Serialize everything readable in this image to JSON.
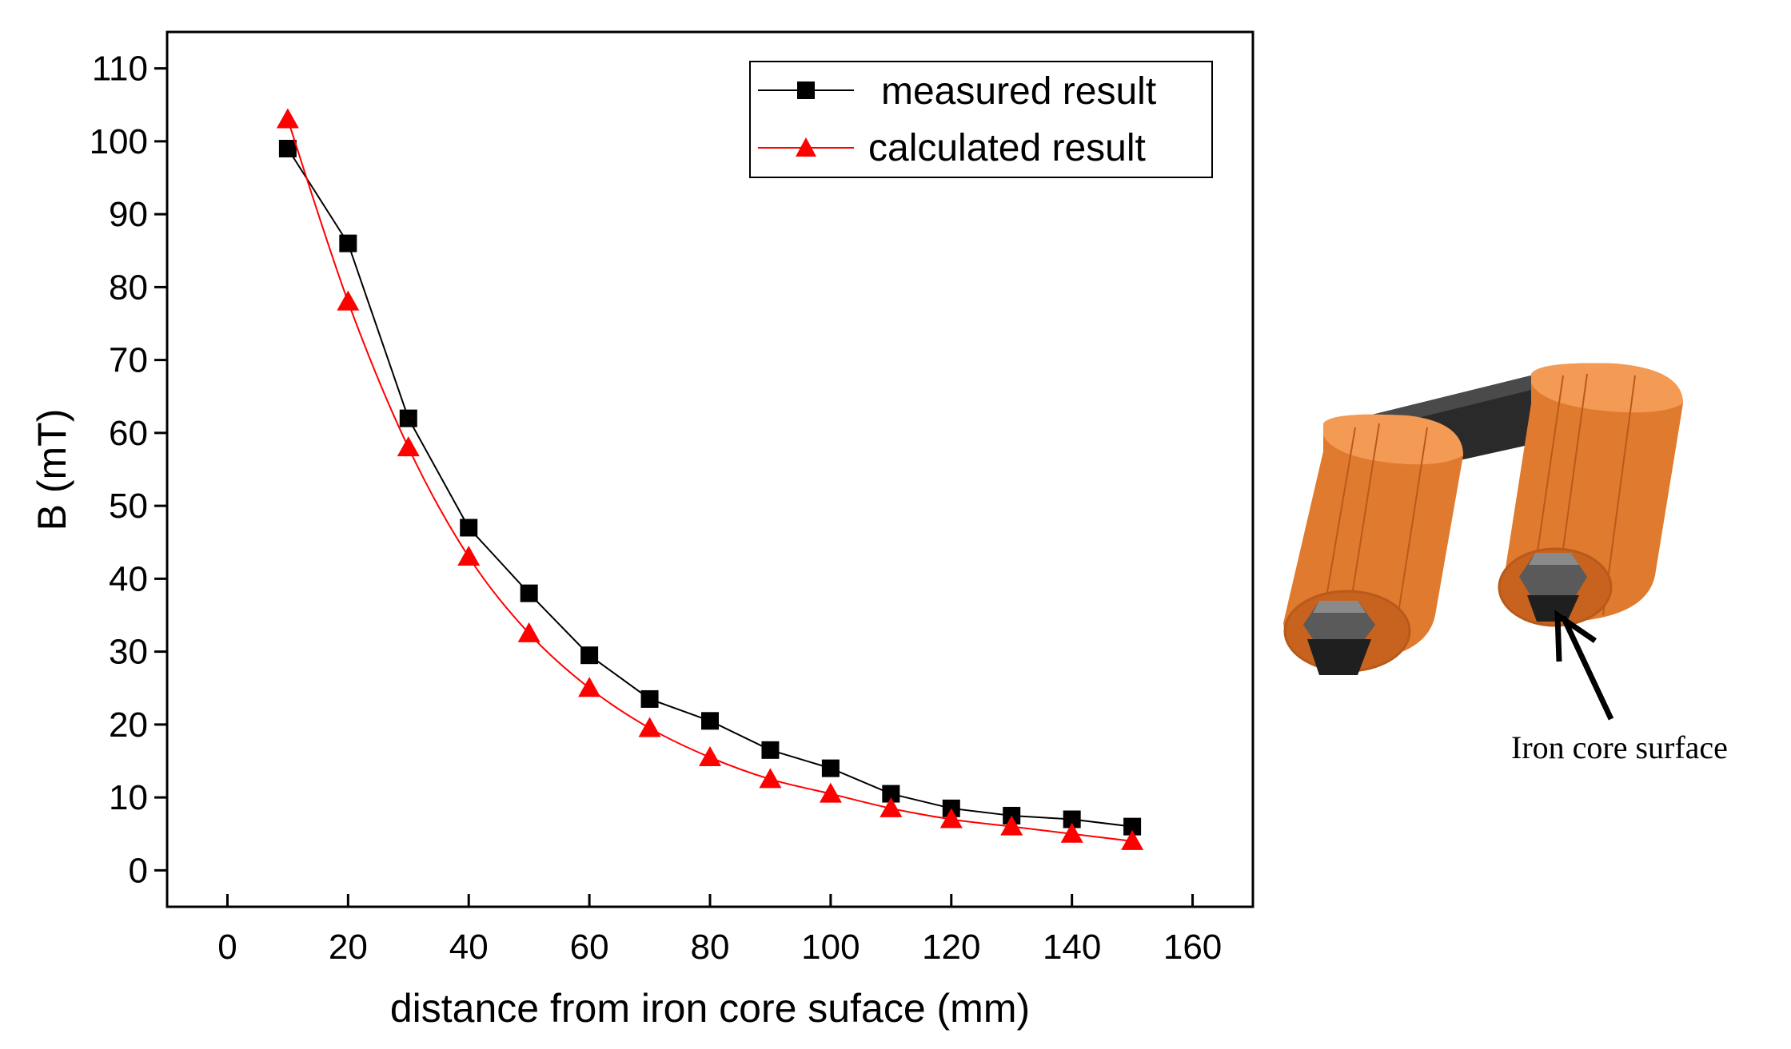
{
  "chart_data": {
    "type": "line",
    "title": "",
    "xlabel": "distance from iron core suface (mm)",
    "ylabel": "B (mT)",
    "xlim": [
      -10,
      170
    ],
    "ylim": [
      -5,
      115
    ],
    "xticks": [
      0,
      20,
      40,
      60,
      80,
      100,
      120,
      140,
      160
    ],
    "yticks": [
      0,
      10,
      20,
      30,
      40,
      50,
      60,
      70,
      80,
      90,
      100,
      110
    ],
    "x": [
      10,
      20,
      30,
      40,
      50,
      60,
      70,
      80,
      90,
      100,
      110,
      120,
      130,
      140,
      150
    ],
    "series": [
      {
        "name": "measured result",
        "marker": "square",
        "color": "#000000",
        "values": [
          99,
          86,
          62,
          47,
          38,
          29.5,
          23.5,
          20.5,
          16.5,
          14,
          10.5,
          8.5,
          7.5,
          7,
          6
        ]
      },
      {
        "name": "calculated result",
        "marker": "triangle",
        "color": "#ff0000",
        "values": [
          103,
          78,
          58,
          43,
          32.5,
          25,
          19.5,
          15.5,
          12.5,
          10.5,
          8.5,
          7,
          6,
          5,
          4
        ]
      }
    ],
    "legend_position": "top-right",
    "grid": false
  },
  "illustration": {
    "callout_label": "Iron core surface",
    "colors": {
      "coil": "#e07a2e",
      "coil_dark": "#b85a1a",
      "coil_light": "#f39a55",
      "core": "#2e2e2e",
      "core_light": "#6e6e6e",
      "yoke": "#1f1f1f"
    }
  }
}
